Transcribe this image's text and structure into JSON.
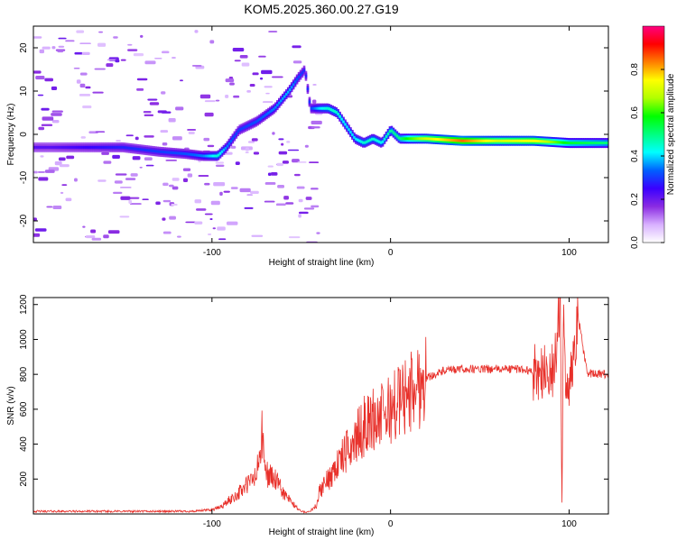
{
  "title": "KOM5.2025.360.00.27.G19",
  "chart_data": [
    {
      "type": "heatmap",
      "name": "spectrogram",
      "xlabel": "Height of straight line (km)",
      "ylabel": "Frequency (Hz)",
      "xlim": [
        -200,
        122
      ],
      "ylim": [
        -25,
        25
      ],
      "xticks": [
        -100,
        0,
        100
      ],
      "yticks": [
        -20,
        -10,
        0,
        10,
        20
      ],
      "colorbar": {
        "label": "Normalized spectral amplitude",
        "range": [
          0,
          1
        ],
        "ticks": [
          "0.0",
          "0.2",
          "0.4",
          "0.6",
          "0.8"
        ],
        "tick_values": [
          0,
          0.2,
          0.4,
          0.6,
          0.8
        ],
        "colors": [
          "#ffffff",
          "#d8b0ff",
          "#8a2be2",
          "#3a00ff",
          "#0060ff",
          "#00ffff",
          "#00ff80",
          "#00ff00",
          "#b0ff00",
          "#ffff00",
          "#ff8000",
          "#ff0000",
          "#ff0080"
        ]
      },
      "ridge": {
        "x": [
          -190,
          -170,
          -150,
          -130,
          -115,
          -105,
          -97,
          -92,
          -85,
          -75,
          -65,
          -57,
          -52,
          -48,
          -45,
          -40,
          -35,
          -30,
          -25,
          -20,
          -15,
          -10,
          -5,
          0,
          5,
          10,
          20,
          40,
          60,
          80,
          100,
          122
        ],
        "y": [
          -3,
          -3,
          -3,
          -4,
          -4.5,
          -5,
          -5,
          -3,
          1,
          3,
          6,
          10,
          13,
          15,
          6,
          6,
          6,
          5,
          2,
          -1,
          -2,
          -1,
          -2,
          1,
          -1,
          -1,
          -1,
          -1.5,
          -1.5,
          -1.5,
          -2,
          -2
        ],
        "amplitude": [
          0.22,
          0.25,
          0.28,
          0.3,
          0.32,
          0.35,
          0.45,
          0.35,
          0.3,
          0.32,
          0.35,
          0.38,
          0.32,
          0.28,
          0.3,
          0.4,
          0.45,
          0.45,
          0.4,
          0.4,
          0.45,
          0.45,
          0.42,
          0.48,
          0.5,
          0.6,
          0.7,
          0.85,
          0.7,
          0.75,
          0.55,
          0.5
        ]
      }
    },
    {
      "type": "line",
      "name": "snr",
      "xlabel": "Height of straight line (km)",
      "ylabel": "SNR (v/v)",
      "xlim": [
        -200,
        122
      ],
      "ylim": [
        0,
        1240
      ],
      "xticks": [
        -100,
        0,
        100
      ],
      "yticks": [
        200,
        400,
        600,
        800,
        1000,
        1200
      ],
      "color": "#e8302a",
      "series": [
        {
          "name": "SNR",
          "x": [
            -200,
            -110,
            -100,
            -95,
            -90,
            -85,
            -80,
            -75,
            -72,
            -70,
            -65,
            -60,
            -55,
            -50,
            -47,
            -45,
            -42,
            -40,
            -35,
            -30,
            -25,
            -20,
            -15,
            -10,
            -5,
            0,
            5,
            10,
            15,
            20,
            25,
            30,
            40,
            60,
            75,
            80,
            85,
            90,
            93,
            95,
            96,
            97,
            98,
            100,
            105,
            110,
            115,
            122
          ],
          "y": [
            15,
            15,
            25,
            40,
            80,
            120,
            170,
            220,
            440,
            240,
            200,
            120,
            60,
            15,
            10,
            15,
            40,
            120,
            200,
            280,
            350,
            420,
            500,
            540,
            560,
            600,
            650,
            690,
            730,
            780,
            800,
            820,
            830,
            830,
            830,
            810,
            820,
            800,
            900,
            1250,
            60,
            1230,
            820,
            700,
            1130,
            810,
            800,
            800
          ]
        }
      ]
    }
  ]
}
